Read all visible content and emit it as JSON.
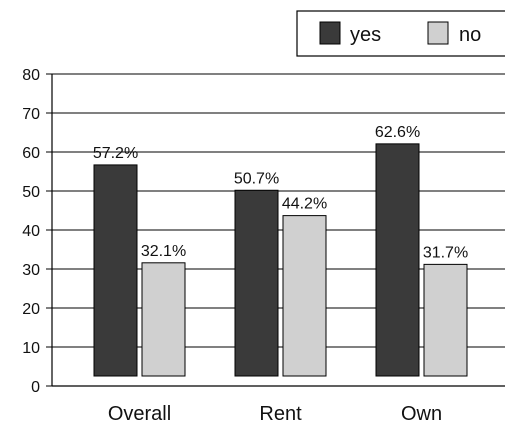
{
  "chart_data": {
    "type": "bar",
    "categories": [
      "Overall",
      "Rent",
      "Own"
    ],
    "series": [
      {
        "name": "yes",
        "values": [
          57.2,
          50.7,
          62.6
        ],
        "labels": [
          "57.2%",
          "50.7%",
          "62.6%"
        ]
      },
      {
        "name": "no",
        "values": [
          32.1,
          44.2,
          31.7
        ],
        "labels": [
          "32.1%",
          "44.2%",
          "31.7%"
        ]
      }
    ],
    "ylim": [
      0,
      80
    ],
    "yticks": [
      "0",
      "10",
      "20",
      "30",
      "40",
      "50",
      "60",
      "70",
      "80"
    ],
    "grid": true,
    "legend_position": "top-right",
    "colors": {
      "yes": "#3a3a3a",
      "no": "#d0d0d0",
      "axis": "#000000",
      "grid": "#000000"
    }
  }
}
